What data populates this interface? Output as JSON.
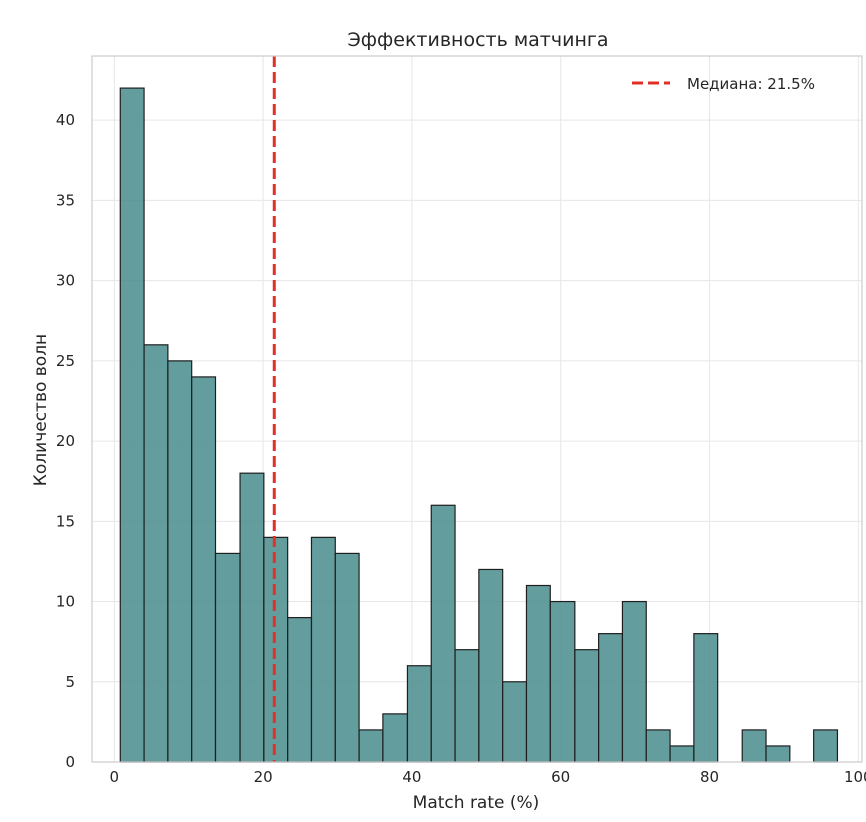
{
  "chart_data": {
    "type": "bar",
    "title": "Эффективность матчинга",
    "xlabel": "Match rate (%)",
    "ylabel": "Количество волн",
    "xlim": [
      -3,
      100.5
    ],
    "ylim": [
      0,
      44
    ],
    "xticks": [
      0,
      20,
      40,
      60,
      80,
      100
    ],
    "yticks": [
      0,
      5,
      10,
      15,
      20,
      25,
      30,
      35,
      40
    ],
    "grid": true,
    "legend_position": "top-right",
    "bins": [
      {
        "start": 0.8,
        "end": 4.0,
        "count": 42
      },
      {
        "start": 4.0,
        "end": 7.2,
        "count": 26
      },
      {
        "start": 7.2,
        "end": 10.4,
        "count": 25
      },
      {
        "start": 10.4,
        "end": 13.6,
        "count": 24
      },
      {
        "start": 13.6,
        "end": 16.9,
        "count": 13
      },
      {
        "start": 16.9,
        "end": 20.1,
        "count": 18
      },
      {
        "start": 20.1,
        "end": 23.3,
        "count": 14
      },
      {
        "start": 23.3,
        "end": 26.5,
        "count": 9
      },
      {
        "start": 26.5,
        "end": 29.7,
        "count": 14
      },
      {
        "start": 29.7,
        "end": 32.9,
        "count": 13
      },
      {
        "start": 32.9,
        "end": 36.1,
        "count": 2
      },
      {
        "start": 36.1,
        "end": 39.4,
        "count": 3
      },
      {
        "start": 39.4,
        "end": 42.6,
        "count": 6
      },
      {
        "start": 42.6,
        "end": 45.8,
        "count": 16
      },
      {
        "start": 45.8,
        "end": 49.0,
        "count": 7
      },
      {
        "start": 49.0,
        "end": 52.2,
        "count": 12
      },
      {
        "start": 52.2,
        "end": 55.4,
        "count": 5
      },
      {
        "start": 55.4,
        "end": 58.6,
        "count": 11
      },
      {
        "start": 58.6,
        "end": 61.9,
        "count": 10
      },
      {
        "start": 61.9,
        "end": 65.1,
        "count": 7
      },
      {
        "start": 65.1,
        "end": 68.3,
        "count": 8
      },
      {
        "start": 68.3,
        "end": 71.5,
        "count": 10
      },
      {
        "start": 71.5,
        "end": 74.7,
        "count": 2
      },
      {
        "start": 74.7,
        "end": 77.9,
        "count": 1
      },
      {
        "start": 77.9,
        "end": 81.1,
        "count": 8
      },
      {
        "start": 81.1,
        "end": 84.4,
        "count": 0
      },
      {
        "start": 84.4,
        "end": 87.6,
        "count": 2
      },
      {
        "start": 87.6,
        "end": 90.8,
        "count": 1
      },
      {
        "start": 90.8,
        "end": 94.0,
        "count": 0
      },
      {
        "start": 94.0,
        "end": 97.2,
        "count": 2
      }
    ],
    "median": {
      "value": 21.5,
      "label": "Медиана: 21.5%",
      "color": "#e03127"
    },
    "bar_color": "#4f8f8f",
    "edge_color": "#1f1f1f"
  }
}
